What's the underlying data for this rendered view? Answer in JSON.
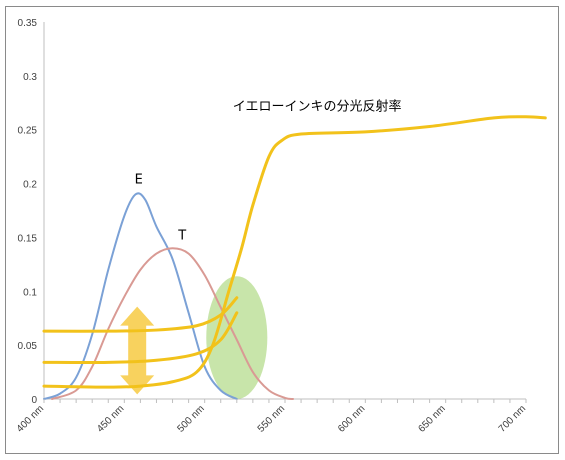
{
  "chart_data": {
    "type": "line",
    "ylim": [
      0,
      0.35
    ],
    "xlim": [
      400,
      700
    ],
    "y_ticks": [
      "0",
      "0.05",
      "0.1",
      "0.15",
      "0.2",
      "0.25",
      "0.3",
      "0.35"
    ],
    "y_tick_values": [
      0,
      0.05,
      0.1,
      0.15,
      0.2,
      0.25,
      0.3,
      0.35
    ],
    "x_ticks": [
      "400 nm",
      "450 nm",
      "500 nm",
      "550 nm",
      "600 nm",
      "650 nm",
      "700 nm"
    ],
    "x_tick_values": [
      400,
      450,
      500,
      550,
      600,
      650,
      700
    ],
    "grid": false,
    "series": [
      {
        "name": "E",
        "color": "#7ba1d6",
        "points": [
          [
            400,
            0
          ],
          [
            410,
            0.005
          ],
          [
            420,
            0.02
          ],
          [
            430,
            0.06
          ],
          [
            440,
            0.12
          ],
          [
            450,
            0.17
          ],
          [
            457,
            0.19
          ],
          [
            463,
            0.185
          ],
          [
            470,
            0.16
          ],
          [
            480,
            0.13
          ],
          [
            490,
            0.08
          ],
          [
            500,
            0.03
          ],
          [
            510,
            0.008
          ],
          [
            520,
            0
          ]
        ]
      },
      {
        "name": "T",
        "color": "#d99a94",
        "points": [
          [
            405,
            0
          ],
          [
            420,
            0.008
          ],
          [
            430,
            0.03
          ],
          [
            440,
            0.065
          ],
          [
            450,
            0.095
          ],
          [
            460,
            0.12
          ],
          [
            470,
            0.135
          ],
          [
            480,
            0.14
          ],
          [
            490,
            0.135
          ],
          [
            500,
            0.115
          ],
          [
            510,
            0.085
          ],
          [
            520,
            0.055
          ],
          [
            530,
            0.025
          ],
          [
            540,
            0.008
          ],
          [
            550,
            0.001
          ],
          [
            555,
            0
          ]
        ]
      },
      {
        "name": "イエローインキの分光反射率",
        "color": "#f2c21b",
        "points": [
          [
            400,
            0.012
          ],
          [
            440,
            0.011
          ],
          [
            460,
            0.012
          ],
          [
            480,
            0.016
          ],
          [
            495,
            0.025
          ],
          [
            505,
            0.05
          ],
          [
            515,
            0.1
          ],
          [
            523,
            0.14
          ],
          [
            530,
            0.18
          ],
          [
            540,
            0.225
          ],
          [
            548,
            0.24
          ],
          [
            560,
            0.246
          ],
          [
            600,
            0.248
          ],
          [
            640,
            0.253
          ],
          [
            680,
            0.261
          ],
          [
            700,
            0.262
          ],
          [
            712,
            0.261
          ]
        ]
      },
      {
        "name": "",
        "color": "#f2c21b",
        "points": [
          [
            400,
            0.063
          ],
          [
            440,
            0.063
          ],
          [
            470,
            0.064
          ],
          [
            495,
            0.068
          ],
          [
            510,
            0.078
          ],
          [
            520,
            0.094
          ]
        ]
      },
      {
        "name": "",
        "color": "#f2c21b",
        "points": [
          [
            400,
            0.034
          ],
          [
            440,
            0.034
          ],
          [
            470,
            0.036
          ],
          [
            495,
            0.042
          ],
          [
            510,
            0.055
          ],
          [
            520,
            0.08
          ]
        ]
      }
    ],
    "annotations": [
      {
        "text": "E",
        "x": 459,
        "y": 0.2
      },
      {
        "text": "T",
        "x": 486,
        "y": 0.148
      },
      {
        "text": "イエローインキの分光反射率",
        "x": 570,
        "y": 0.268
      }
    ],
    "overlays": [
      {
        "shape": "double-arrow",
        "color": "#f7cd4d",
        "x": 458,
        "y_from": 0.008,
        "y_to": 0.082
      },
      {
        "shape": "ellipse",
        "color": "#b6dc8e",
        "cx": 520,
        "cy": 0.057,
        "rx": 19,
        "ry": 0.057
      }
    ]
  }
}
